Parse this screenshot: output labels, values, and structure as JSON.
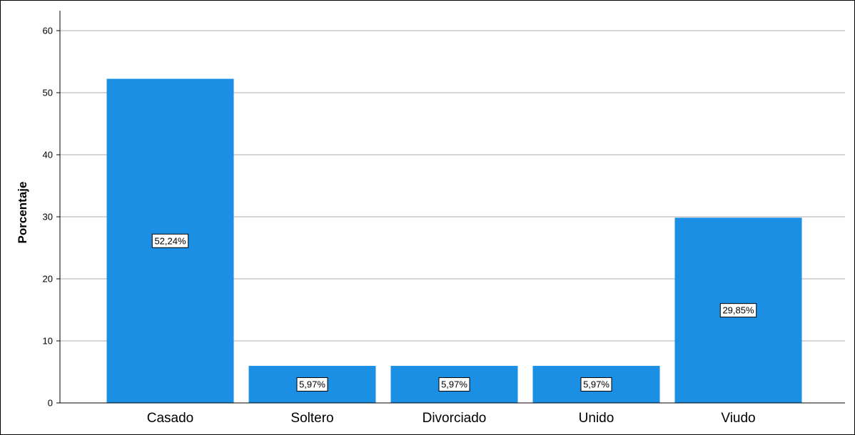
{
  "chart_data": {
    "type": "bar",
    "title": "",
    "xlabel": "",
    "ylabel": "Porcentaje",
    "categories": [
      "Casado",
      "Soltero",
      "Divorciado",
      "Unido",
      "Viudo"
    ],
    "values": [
      52.24,
      5.97,
      5.97,
      5.97,
      29.85
    ],
    "data_labels": [
      "52,24%",
      "5,97%",
      "5,97%",
      "5,97%",
      "29,85%"
    ],
    "ylim": [
      0,
      60
    ],
    "yticks": [
      0,
      10,
      20,
      30,
      40,
      50,
      60
    ],
    "grid": true,
    "legend": "none",
    "colors": {
      "bar": "#1a8fe3",
      "grid": "#c8c8c8",
      "axis": "#000000"
    }
  }
}
